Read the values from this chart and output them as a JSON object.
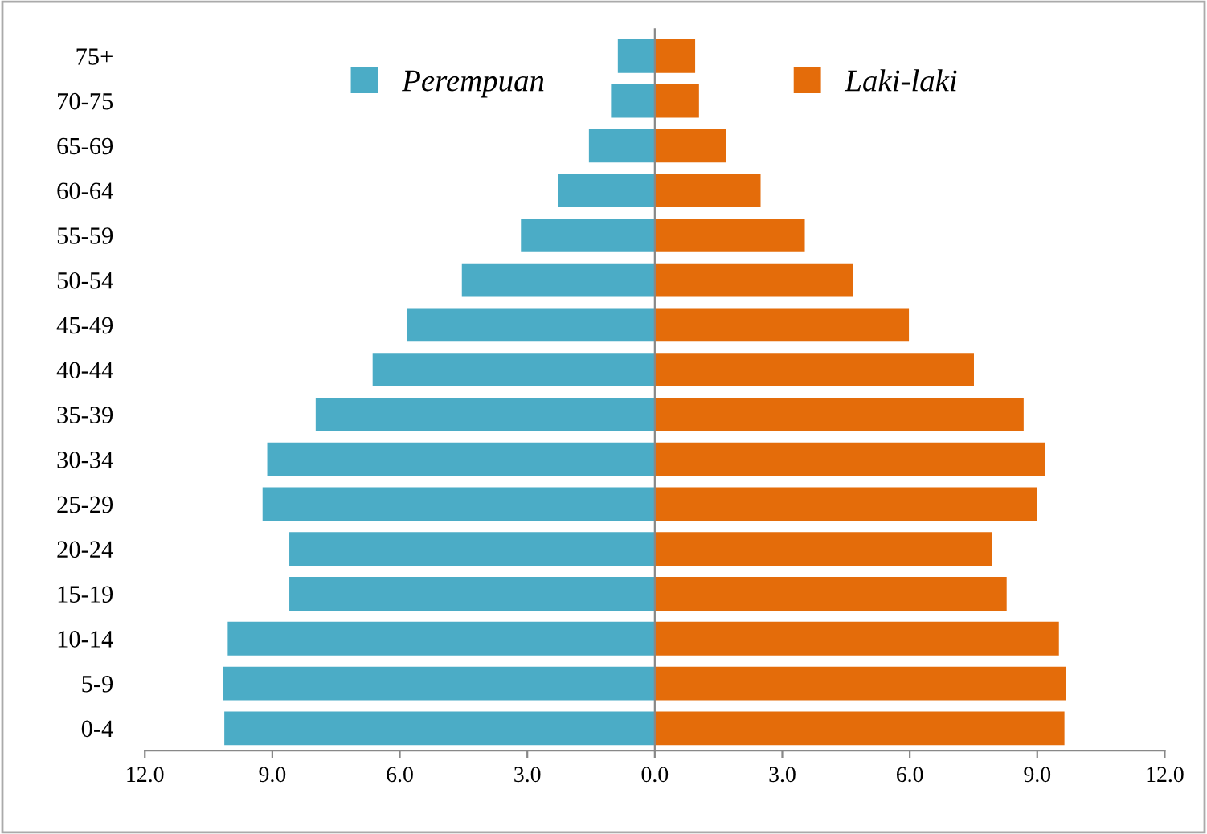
{
  "chart_data": {
    "type": "bar",
    "orientation": "horizontal",
    "stacked": true,
    "categories": [
      "75+",
      "70-75",
      "65-69",
      "60-64",
      "55-59",
      "50-54",
      "45-49",
      "40-44",
      "35-39",
      "30-34",
      "25-29",
      "20-24",
      "15-19",
      "10-14",
      "5-9",
      "0-4"
    ],
    "series": [
      {
        "name": "Perempuan",
        "color": "#4bacc6",
        "values": [
          -0.87,
          -1.03,
          -1.55,
          -2.27,
          -3.15,
          -4.54,
          -5.84,
          -6.64,
          -7.98,
          -9.12,
          -9.23,
          -8.6,
          -8.6,
          -10.05,
          -10.17,
          -10.13
        ]
      },
      {
        "name": "Laki-laki",
        "color": "#e46c0a",
        "values": [
          0.95,
          1.04,
          1.67,
          2.49,
          3.53,
          4.67,
          5.98,
          7.51,
          8.68,
          9.18,
          8.99,
          7.93,
          8.28,
          9.51,
          9.68,
          9.64
        ]
      }
    ],
    "xlim": [
      -12,
      12
    ],
    "xticks": [
      {
        "value": -12,
        "label": "12.0"
      },
      {
        "value": -9,
        "label": "9.0"
      },
      {
        "value": -6,
        "label": "6.0"
      },
      {
        "value": -3,
        "label": "3.0"
      },
      {
        "value": 0,
        "label": "0.0"
      },
      {
        "value": 3,
        "label": "3.0"
      },
      {
        "value": 6,
        "label": "6.0"
      },
      {
        "value": 9,
        "label": "9.0"
      },
      {
        "value": 12,
        "label": "12.0"
      }
    ],
    "legend": "top"
  }
}
